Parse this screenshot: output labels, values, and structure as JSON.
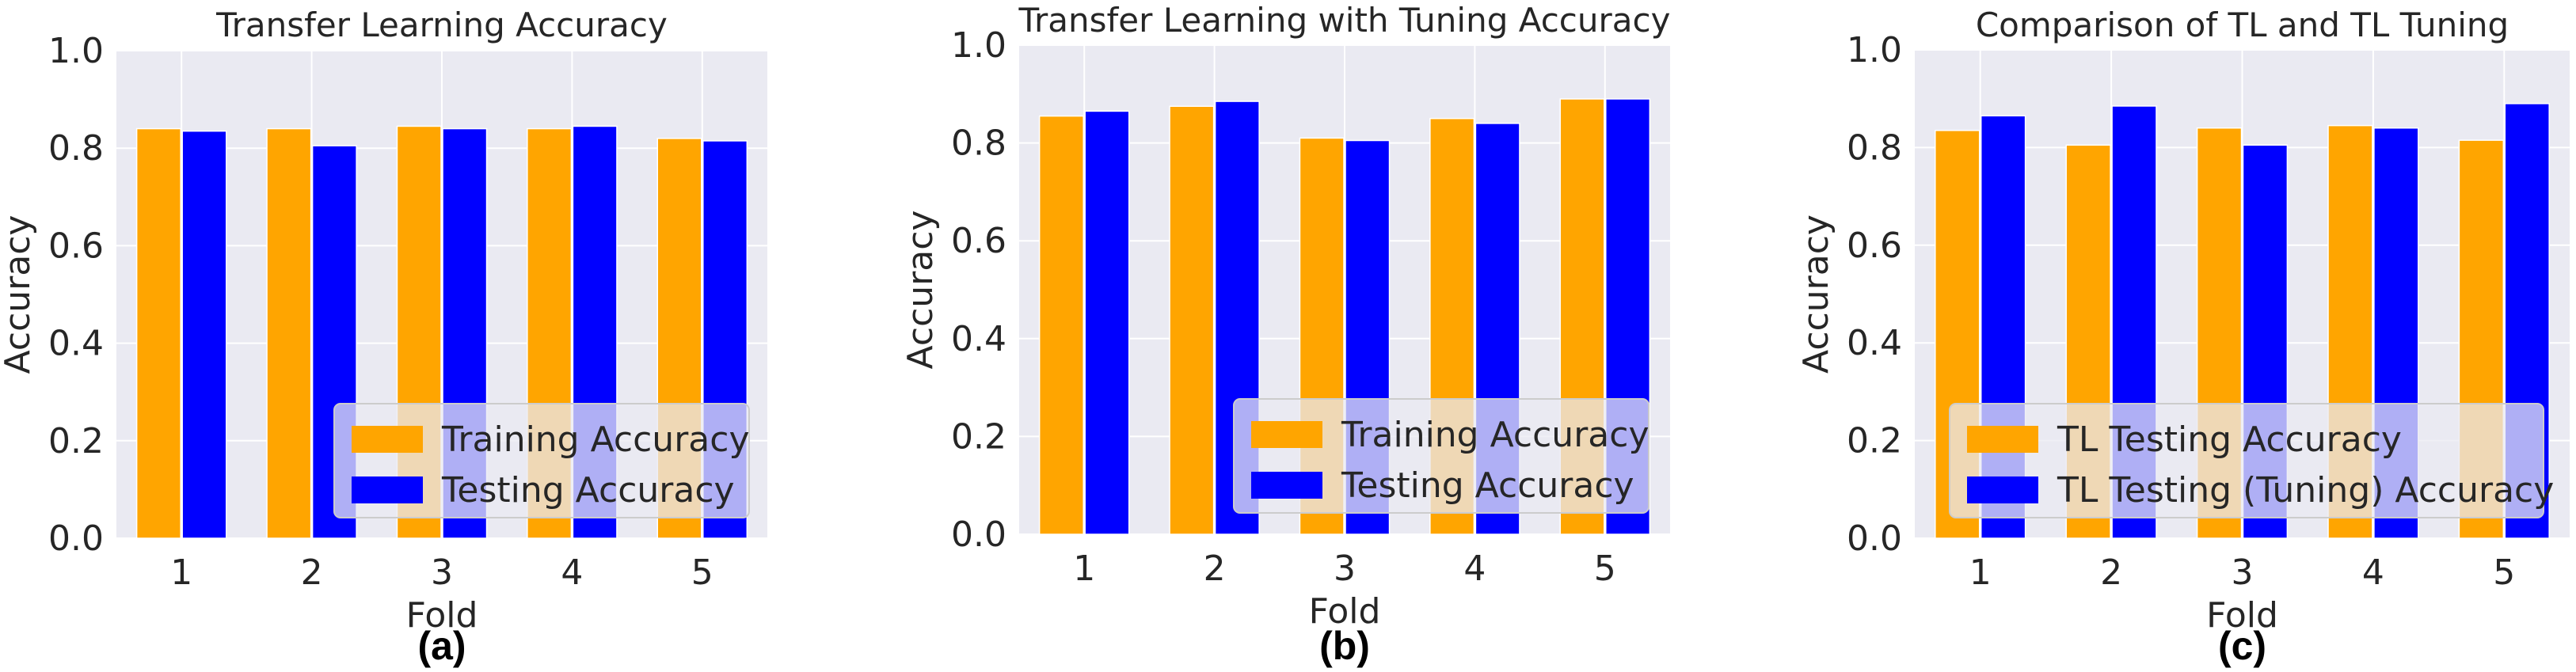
{
  "figure": {
    "panel_labels": [
      "(a)",
      "(b)",
      "(c)"
    ]
  },
  "colors": {
    "background": "#EAEAF2",
    "grid": "#FFFFFF",
    "orange": "#FFA500",
    "blue": "#0000FF"
  },
  "chart_data": [
    {
      "type": "bar",
      "title": "Transfer Learning Accuracy",
      "xlabel": "Fold",
      "ylabel": "Accuracy",
      "categories": [
        "1",
        "2",
        "3",
        "4",
        "5"
      ],
      "ylim": [
        0.0,
        1.0
      ],
      "yticks": [
        "0.0",
        "0.2",
        "0.4",
        "0.6",
        "0.8",
        "1.0"
      ],
      "grid": true,
      "legend_position": "lower right",
      "series": [
        {
          "name": "Training Accuracy",
          "color": "#FFA500",
          "values": [
            0.84,
            0.84,
            0.845,
            0.84,
            0.82
          ]
        },
        {
          "name": "Testing Accuracy",
          "color": "#0000FF",
          "values": [
            0.835,
            0.805,
            0.84,
            0.845,
            0.815
          ]
        }
      ]
    },
    {
      "type": "bar",
      "title": "Transfer Learning with Tuning Accuracy",
      "xlabel": "Fold",
      "ylabel": "Accuracy",
      "categories": [
        "1",
        "2",
        "3",
        "4",
        "5"
      ],
      "ylim": [
        0.0,
        1.0
      ],
      "yticks": [
        "0.0",
        "0.2",
        "0.4",
        "0.6",
        "0.8",
        "1.0"
      ],
      "grid": true,
      "legend_position": "lower right",
      "series": [
        {
          "name": "Training Accuracy",
          "color": "#FFA500",
          "values": [
            0.855,
            0.875,
            0.81,
            0.85,
            0.89
          ]
        },
        {
          "name": "Testing Accuracy",
          "color": "#0000FF",
          "values": [
            0.865,
            0.885,
            0.805,
            0.84,
            0.89
          ]
        }
      ]
    },
    {
      "type": "bar",
      "title": "Comparison of TL and TL Tuning",
      "xlabel": "Fold",
      "ylabel": "Accuracy",
      "categories": [
        "1",
        "2",
        "3",
        "4",
        "5"
      ],
      "ylim": [
        0.0,
        1.0
      ],
      "yticks": [
        "0.0",
        "0.2",
        "0.4",
        "0.6",
        "0.8",
        "1.0"
      ],
      "grid": true,
      "legend_position": "lower right",
      "series": [
        {
          "name": "TL Testing Accuracy",
          "color": "#FFA500",
          "values": [
            0.835,
            0.805,
            0.84,
            0.845,
            0.815
          ]
        },
        {
          "name": "TL Testing (Tuning) Accuracy",
          "color": "#0000FF",
          "values": [
            0.865,
            0.885,
            0.805,
            0.84,
            0.89
          ]
        }
      ]
    }
  ]
}
